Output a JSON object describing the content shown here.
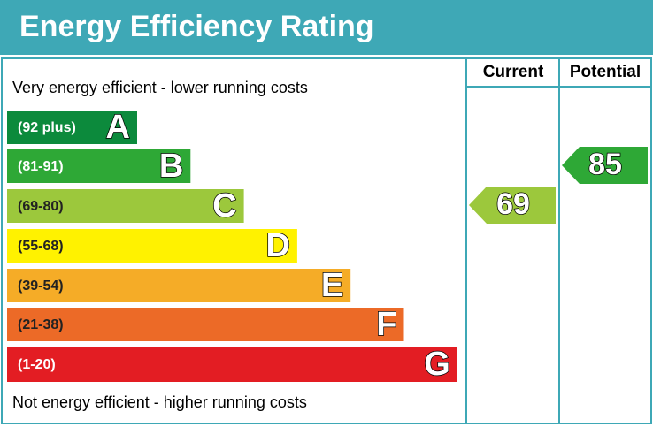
{
  "header": {
    "title": "Energy Efficiency Rating"
  },
  "columns": [
    "Current",
    "Potential"
  ],
  "top_note": "Very energy efficient - lower running costs",
  "bottom_note": "Not energy efficient - higher running costs",
  "bands": [
    {
      "range": "(92 plus)",
      "letter": "A"
    },
    {
      "range": "(81-91)",
      "letter": "B"
    },
    {
      "range": "(69-80)",
      "letter": "C"
    },
    {
      "range": "(55-68)",
      "letter": "D"
    },
    {
      "range": "(39-54)",
      "letter": "E"
    },
    {
      "range": "(21-38)",
      "letter": "F"
    },
    {
      "range": "(1-20)",
      "letter": "G"
    }
  ],
  "current": 69,
  "potential": 85
}
